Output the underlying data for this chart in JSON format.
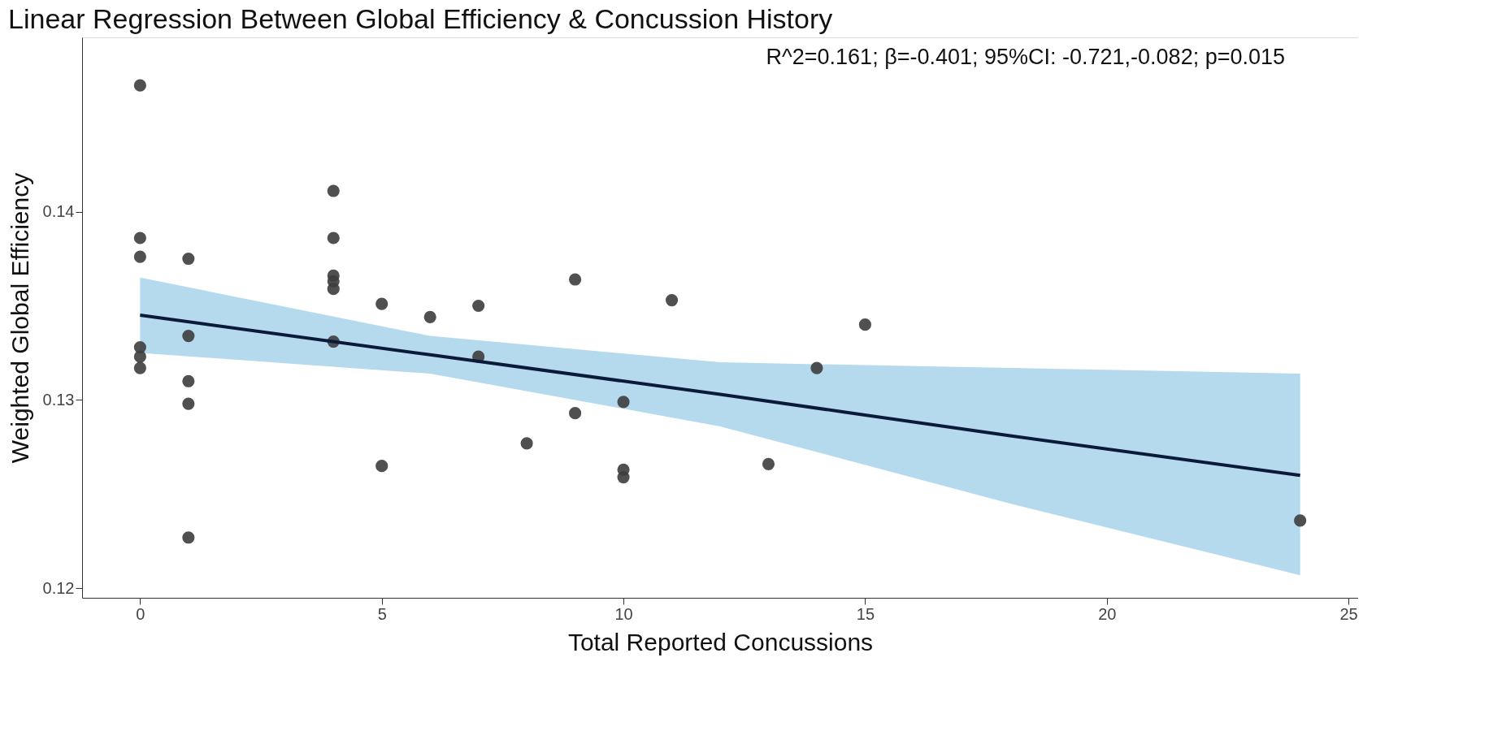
{
  "chart_data": {
    "type": "scatter",
    "title": "Linear Regression Between Global Efficiency & Concussion History",
    "xlabel": "Total Reported Concussions",
    "ylabel": "Weighted Global Efficiency",
    "annotations": [
      "R^2=0.161; β=-0.401; 95%CI: -0.721,-0.082; p=0.015"
    ],
    "series": [
      {
        "color": "#3d3d3d",
        "marker": "circle",
        "x": [
          0,
          0,
          0,
          0,
          0,
          0,
          1,
          1,
          1,
          1,
          1,
          4,
          4,
          4,
          4,
          4,
          4,
          5,
          5,
          6,
          7,
          7,
          8,
          9,
          9,
          10,
          10,
          10,
          11,
          13,
          14,
          15,
          24
        ],
        "values": [
          0.1467,
          0.1386,
          0.1376,
          0.1328,
          0.1323,
          0.1317,
          0.1375,
          0.1334,
          0.131,
          0.1298,
          0.1227,
          0.1411,
          0.1386,
          0.1366,
          0.1363,
          0.1359,
          0.1331,
          0.1351,
          0.1265,
          0.1344,
          0.135,
          0.1323,
          0.1277,
          0.1364,
          0.1293,
          0.1299,
          0.1263,
          0.1259,
          0.1353,
          0.1266,
          0.1317,
          0.134,
          0.1236
        ]
      },
      {
        "type": "line",
        "marker": "none",
        "color": "#0b1a3a",
        "x": [
          0,
          6,
          12,
          18,
          24
        ],
        "values": [
          0.1345,
          0.1324,
          0.1303,
          0.1281,
          0.126
        ],
        "lower": [
          0.1325,
          0.1314,
          0.1286,
          0.1245,
          0.1207
        ],
        "upper": [
          0.1365,
          0.1334,
          0.132,
          0.1317,
          0.1314
        ]
      }
    ],
    "xlim": [
      -1.2,
      25.2
    ],
    "ylim": [
      0.1195,
      0.14925
    ],
    "xticks": [
      0,
      5,
      10,
      15,
      20,
      25
    ],
    "yticks": [
      0.12,
      0.13,
      0.14
    ],
    "grid": false,
    "line_style": "solid"
  }
}
